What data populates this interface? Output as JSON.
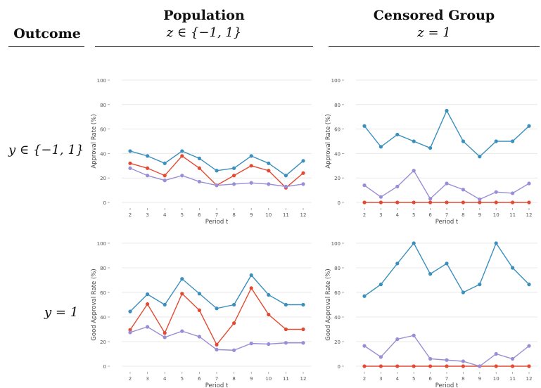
{
  "header": {
    "outcome": "Outcome",
    "population": "Population",
    "population_z": "z ∈ {−1, 1}",
    "censored": "Censored Group",
    "censored_z": "z = 1"
  },
  "rows": [
    {
      "label": "y ∈ {−1, 1}"
    },
    {
      "label": "y = 1"
    }
  ],
  "colors": {
    "blue": "#3a8fbd",
    "red": "#e24a33",
    "purple": "#988ed5"
  },
  "chart_data": [
    {
      "type": "line",
      "panel": "population-all",
      "title": "",
      "xlabel": "Period t",
      "ylabel": "Approval Rate (%)",
      "x": [
        2,
        3,
        4,
        5,
        6,
        7,
        8,
        9,
        10,
        11,
        12
      ],
      "ylim": [
        0,
        100
      ],
      "yticks": [
        0,
        20,
        40,
        60,
        80,
        100
      ],
      "grid": true,
      "series": [
        {
          "color": "#3a8fbd",
          "values": [
            42,
            38,
            32,
            42,
            36,
            26,
            28,
            38,
            32,
            22,
            34
          ]
        },
        {
          "color": "#e24a33",
          "values": [
            32,
            28,
            22,
            38,
            28,
            14,
            22,
            30,
            26,
            12,
            24
          ]
        },
        {
          "color": "#988ed5",
          "values": [
            28,
            22,
            18,
            22,
            17,
            14,
            15,
            16,
            15,
            13,
            15
          ]
        }
      ]
    },
    {
      "type": "line",
      "panel": "censored-all",
      "title": "",
      "xlabel": "Period t",
      "ylabel": "Approval Rate (%)",
      "x": [
        2,
        3,
        4,
        5,
        6,
        7,
        8,
        9,
        10,
        11,
        12
      ],
      "ylim": [
        0,
        100
      ],
      "yticks": [
        0,
        20,
        40,
        60,
        80,
        100
      ],
      "grid": true,
      "series": [
        {
          "color": "#3a8fbd",
          "values": [
            62.5,
            45.5,
            55.5,
            50,
            44.5,
            75,
            50,
            37.5,
            50,
            50,
            62.5
          ]
        },
        {
          "color": "#e24a33",
          "values": [
            0,
            0,
            0,
            0,
            0,
            0,
            0,
            0,
            0,
            0,
            0
          ]
        },
        {
          "color": "#988ed5",
          "values": [
            14,
            4.5,
            13,
            26,
            3,
            15.5,
            10.5,
            2.5,
            8.5,
            7.5,
            15.5
          ]
        }
      ]
    },
    {
      "type": "line",
      "panel": "population-good",
      "title": "",
      "xlabel": "Period t",
      "ylabel": "Good Approval Rate (%)",
      "x": [
        2,
        3,
        4,
        5,
        6,
        7,
        8,
        9,
        10,
        11,
        12
      ],
      "ylim": [
        0,
        100
      ],
      "yticks": [
        0,
        20,
        40,
        60,
        80,
        100
      ],
      "grid": true,
      "series": [
        {
          "color": "#3a8fbd",
          "values": [
            44.5,
            58.5,
            50,
            71,
            59,
            47,
            50,
            74,
            58,
            50,
            50
          ]
        },
        {
          "color": "#e24a33",
          "values": [
            29.5,
            50.5,
            27,
            59,
            45.5,
            17.5,
            35,
            63.5,
            42,
            30,
            30
          ]
        },
        {
          "color": "#988ed5",
          "values": [
            27.5,
            32,
            23.5,
            28.5,
            24,
            13.5,
            13,
            18.5,
            18,
            19,
            19
          ]
        }
      ]
    },
    {
      "type": "line",
      "panel": "censored-good",
      "title": "",
      "xlabel": "Period t",
      "ylabel": "Good Approval Rate (%)",
      "x": [
        2,
        3,
        4,
        5,
        6,
        7,
        8,
        9,
        10,
        11,
        12
      ],
      "ylim": [
        0,
        100
      ],
      "yticks": [
        0,
        20,
        40,
        60,
        80,
        100
      ],
      "grid": true,
      "series": [
        {
          "color": "#3a8fbd",
          "values": [
            57,
            66.5,
            83.5,
            100,
            75,
            83.5,
            60,
            66.5,
            100,
            80,
            66.5
          ]
        },
        {
          "color": "#e24a33",
          "values": [
            0,
            0,
            0,
            0,
            0,
            0,
            0,
            0,
            0,
            0,
            0
          ]
        },
        {
          "color": "#988ed5",
          "values": [
            16.5,
            7.5,
            22,
            25,
            6,
            5,
            4,
            0,
            10,
            6,
            16.5
          ]
        }
      ]
    }
  ]
}
